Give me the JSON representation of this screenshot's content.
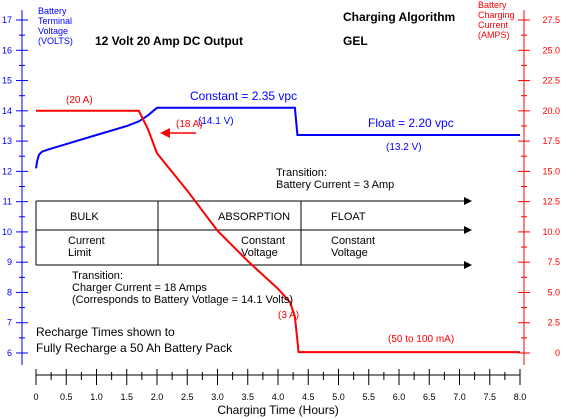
{
  "chart_data": {
    "type": "line",
    "title": "Charging Algorithm",
    "subtitle": "12 Volt 20 Amp DC Output",
    "battery_type": "GEL",
    "xlabel": "Charging Time (Hours)",
    "xlim": [
      0,
      8
    ],
    "x_ticks": [
      "0",
      "0.5",
      "1.0",
      "1.5",
      "2.0",
      "2.5",
      "3.0",
      "3.5",
      "4.0",
      "4.5",
      "5.0",
      "5.5",
      "6.0",
      "6.5",
      "7.0",
      "7.5",
      "8.0"
    ],
    "ylabel_left": "Battery Terminal Voltage (VOLTS)",
    "ylim_left": [
      6,
      17
    ],
    "y_ticks_left": [
      "6",
      "7",
      "8",
      "9",
      "10",
      "11",
      "12",
      "13",
      "14",
      "15",
      "16",
      "17"
    ],
    "ylabel_right": "Battery Charging Current (AMPS)",
    "ylim_right": [
      0,
      27.5
    ],
    "y_ticks_right": [
      "0",
      "2.5",
      "5.0",
      "7.5",
      "10.0",
      "12.5",
      "15.0",
      "17.5",
      "20.0",
      "22.5",
      "25.0",
      "27.5"
    ],
    "series": [
      {
        "axis": "left",
        "color": "#0000ff",
        "x": [
          0,
          0.02,
          0.05,
          0.1,
          0.2,
          0.5,
          1.0,
          1.5,
          1.7,
          1.85,
          2.0,
          4.28,
          4.32,
          8.0
        ],
        "y": [
          12.1,
          12.35,
          12.55,
          12.65,
          12.72,
          12.9,
          13.2,
          13.5,
          13.65,
          13.85,
          14.1,
          14.1,
          13.2,
          13.2
        ]
      },
      {
        "axis": "right",
        "color": "#ff0000",
        "x": [
          0,
          1.7,
          1.85,
          2.0,
          2.5,
          3.0,
          3.5,
          4.0,
          4.2,
          4.28,
          4.34,
          8.0
        ],
        "y": [
          20,
          20,
          18.5,
          16.5,
          13.4,
          10.1,
          7.6,
          5.3,
          4.2,
          3.0,
          0.075,
          0.075
        ]
      }
    ],
    "phases": {
      "row1": [
        "BULK",
        "ABSORPTION",
        "FLOAT"
      ],
      "row2": [
        "Current\nLimit",
        "Constant\nVoltage",
        "Constant\nVoltage"
      ]
    },
    "annotations": {
      "left_axis_title": [
        "Battery",
        "Terminal",
        "Voltage",
        "(VOLTS)"
      ],
      "right_axis_title": [
        "Battery",
        "Charging",
        "Current",
        "(AMPS)"
      ],
      "current_20a": "(20 A)",
      "constant_vpc": "Constant = 2.35 vpc",
      "v_14_1": "(14.1 V)",
      "float_vpc": "Float = 2.20 vpc",
      "v_13_2": "(13.2 V)",
      "current_18a": "(18 A)",
      "transition_3a": [
        "Transition:",
        "Battery Current = 3 Amp"
      ],
      "transition_18a": [
        "Transition:",
        "Charger Current = 18 Amps",
        "(Corresponds to Battery Votlage = 14.1 Volts)"
      ],
      "current_3a": "(3 A)",
      "current_ma": "(50 to 100 mA)",
      "recharge_note": [
        "Recharge Times shown to",
        "Fully Recharge a 50 Ah Battery Pack"
      ]
    }
  }
}
